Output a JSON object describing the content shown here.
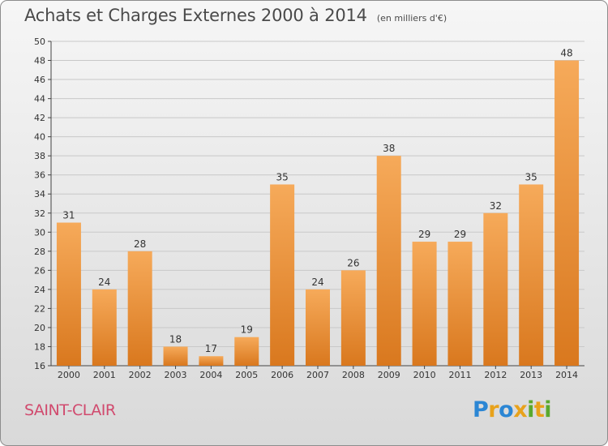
{
  "title": "Achats et Charges Externes 2000 à 2014",
  "unit": "(en milliers d'€)",
  "commune": "SAINT-CLAIR",
  "logo": {
    "text": "Proxiti",
    "letter_colors": [
      "#2b86d4",
      "#e8a21b",
      "#2b86d4",
      "#e8a21b",
      "#5aa92e",
      "#e8a21b",
      "#5aa92e"
    ]
  },
  "colors": {
    "bar_light": "#f6aa5a",
    "bar_dark": "#d9781e",
    "grid": "#c8c8c8"
  },
  "chart_data": {
    "type": "bar",
    "title": "Achats et Charges Externes 2000 à 2014",
    "subtitle": "(en milliers d'€)",
    "categories": [
      "2000",
      "2001",
      "2002",
      "2003",
      "2004",
      "2005",
      "2006",
      "2007",
      "2008",
      "2009",
      "2010",
      "2011",
      "2012",
      "2013",
      "2014"
    ],
    "values": [
      31,
      24,
      28,
      18,
      17,
      19,
      35,
      24,
      26,
      38,
      29,
      29,
      32,
      35,
      48
    ],
    "yticks": [
      16,
      18,
      20,
      22,
      24,
      26,
      28,
      30,
      32,
      34,
      36,
      38,
      40,
      42,
      44,
      46,
      48,
      50
    ],
    "ylim": [
      16,
      50
    ],
    "grid": true,
    "legend": false
  }
}
